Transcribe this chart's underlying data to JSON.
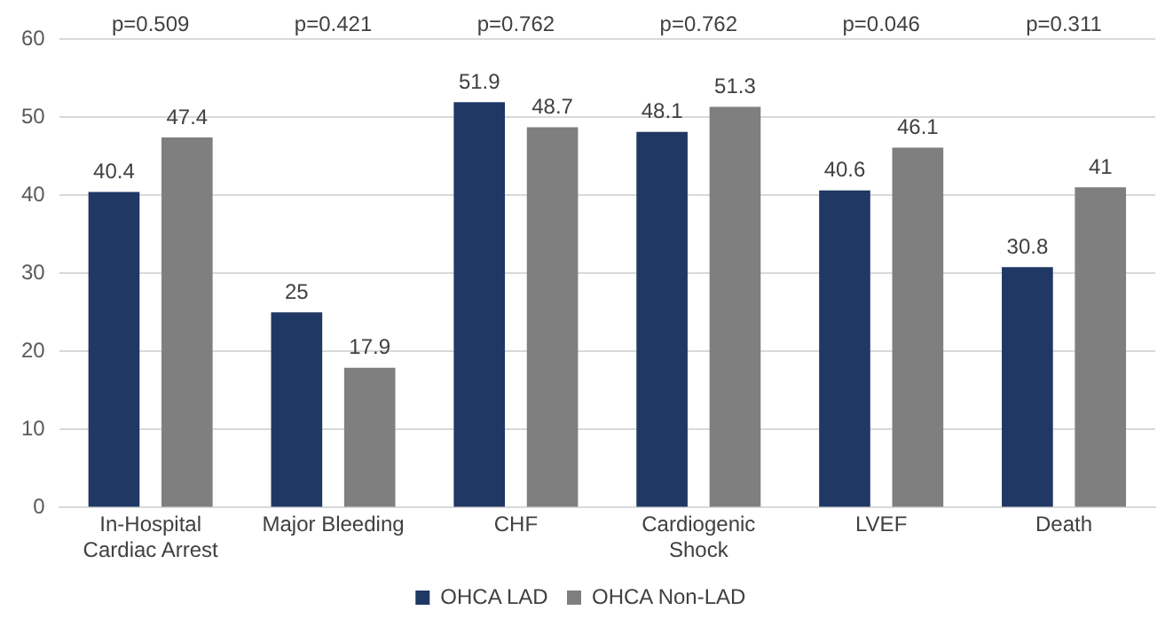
{
  "chart_data": {
    "type": "bar",
    "categories": [
      "In-Hospital Cardiac Arrest",
      "Major Bleeding",
      "CHF",
      "Cardiogenic Shock",
      "LVEF",
      "Death"
    ],
    "series": [
      {
        "name": "OHCA LAD",
        "color": "#1f3864",
        "values": [
          40.4,
          25,
          51.9,
          48.1,
          40.6,
          30.8
        ]
      },
      {
        "name": "OHCA Non-LAD",
        "color": "#7f7f7f",
        "values": [
          47.4,
          17.9,
          48.7,
          51.3,
          46.1,
          41
        ]
      }
    ],
    "ylim": [
      0,
      60
    ],
    "yticks": [
      0,
      10,
      20,
      30,
      40,
      50,
      60
    ],
    "grid": "y",
    "legend": "bottom",
    "data_labels": true,
    "annotations": [
      "p=0.509",
      "p=0.421",
      "p=0.762",
      "p=0.762",
      "p=0.046",
      "p=0.311"
    ]
  }
}
